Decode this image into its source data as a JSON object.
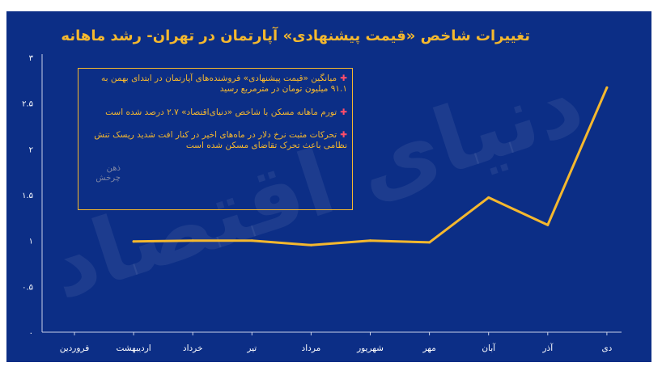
{
  "chart_data": {
    "type": "line",
    "title": "تغییرات شاخص «قیمت پیشنهادی» آپارتمان در تهران- رشد ماهانه",
    "xlabel": "",
    "ylabel": "",
    "categories": [
      "فروردین",
      "اردیبهشت",
      "خرداد",
      "تیر",
      "مرداد",
      "شهریور",
      "مهر",
      "آبان",
      "آذر",
      "دی"
    ],
    "series": [
      {
        "values": [
          null,
          0.99,
          1.0,
          1.0,
          0.95,
          1.0,
          0.98,
          1.47,
          1.17,
          2.67
        ]
      }
    ],
    "ylim": [
      0,
      3
    ],
    "yticks": [
      "۰",
      "۰.۵",
      "۱",
      "۱.۵",
      "۲",
      "۲.۵",
      "۳"
    ],
    "grid": false,
    "line_color": "#f5b82e",
    "background_color": "#0c2e86"
  },
  "notes": [
    "میانگین «قیمت پیشنهادی» فروشنده‌های آپارتمان در ابتدای بهمن به ۹۱.۱ میلیون تومان در مترمربع رسید",
    "تورم ماهانه مسکن با شاخص «دنیای‌اقتصاد» ۲.۷ درصد شده است",
    "تحرکات مثبت نرخ دلار در ماه‌های اخیر در کنار افت شدید ریسک تنش نظامی باعث تحرک تقاضای مسکن شده است"
  ],
  "brand_mark": "ذهن چرخش",
  "watermark": "دنیای اقتصاد",
  "colors": {
    "accent": "#f5b82e",
    "bullet": "#ff4d6a",
    "panel": "#0c2e86",
    "text": "#ffffff"
  }
}
